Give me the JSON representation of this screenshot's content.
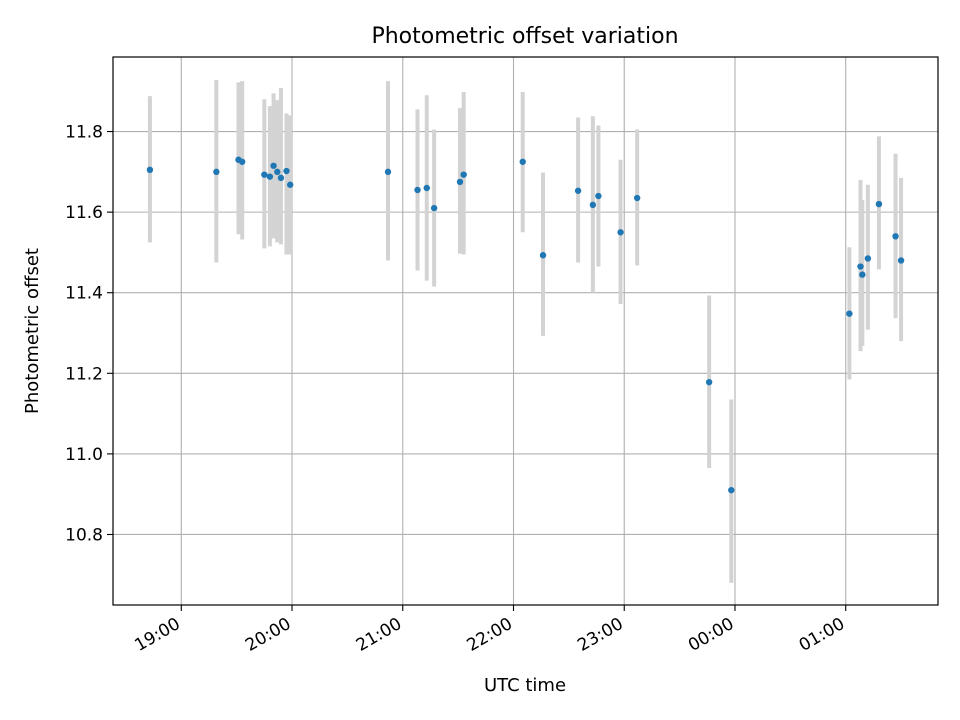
{
  "chart_data": {
    "type": "scatter",
    "title": "Photometric offset variation",
    "xlabel": "UTC time",
    "ylabel": "Photometric offset",
    "xlim": [
      "18:23",
      "01:50"
    ],
    "ylim": [
      10.625,
      11.985
    ],
    "x_ticks": [
      {
        "t": "19:00",
        "label": "19:00"
      },
      {
        "t": "20:00",
        "label": "20:00"
      },
      {
        "t": "21:00",
        "label": "21:00"
      },
      {
        "t": "22:00",
        "label": "22:00"
      },
      {
        "t": "23:00",
        "label": "23:00"
      },
      {
        "t": "00:00",
        "label": "00:00"
      },
      {
        "t": "01:00",
        "label": "01:00"
      }
    ],
    "y_ticks": [
      10.8,
      11.0,
      11.2,
      11.4,
      11.6,
      11.8
    ],
    "grid": true,
    "marker_color": "#1f77b4",
    "errorbar_color": "#d3d3d3",
    "series": [
      {
        "x": [
          "18:43",
          "19:19",
          "19:31",
          "19:33",
          "19:45",
          "19:48",
          "19:50",
          "19:52",
          "19:54",
          "19:57",
          "19:59",
          "20:52",
          "21:08",
          "21:13",
          "21:17",
          "21:31",
          "21:33",
          "22:05",
          "22:16",
          "22:35",
          "22:43",
          "22:46",
          "22:58",
          "23:07",
          "23:46",
          "23:58",
          "01:02",
          "01:08",
          "01:09",
          "01:12",
          "01:18",
          "01:27",
          "01:30"
        ],
        "y": [
          11.705,
          11.7,
          11.73,
          11.725,
          11.693,
          11.688,
          11.715,
          11.7,
          11.685,
          11.702,
          11.668,
          11.7,
          11.655,
          11.66,
          11.61,
          11.675,
          11.693,
          11.725,
          11.493,
          11.653,
          11.618,
          11.64,
          11.55,
          11.635,
          11.178,
          10.91,
          11.348,
          11.465,
          11.445,
          11.485,
          11.62,
          11.54,
          11.48
        ],
        "err_low": [
          11.525,
          11.475,
          11.545,
          11.532,
          11.51,
          11.515,
          11.535,
          11.525,
          11.52,
          11.495,
          11.495,
          11.48,
          11.455,
          11.43,
          11.415,
          11.497,
          11.495,
          11.55,
          11.293,
          11.475,
          11.4,
          11.465,
          11.372,
          11.468,
          10.965,
          10.68,
          11.185,
          11.255,
          11.268,
          11.308,
          11.458,
          11.337,
          11.28
        ],
        "err_high": [
          11.888,
          11.928,
          11.922,
          11.925,
          11.88,
          11.863,
          11.895,
          11.878,
          11.908,
          11.845,
          11.84,
          11.925,
          11.855,
          11.89,
          11.805,
          11.858,
          11.898,
          11.898,
          11.698,
          11.835,
          11.838,
          11.815,
          11.73,
          11.805,
          11.393,
          11.135,
          11.513,
          11.68,
          11.63,
          11.668,
          11.788,
          11.745,
          11.685
        ]
      }
    ]
  }
}
